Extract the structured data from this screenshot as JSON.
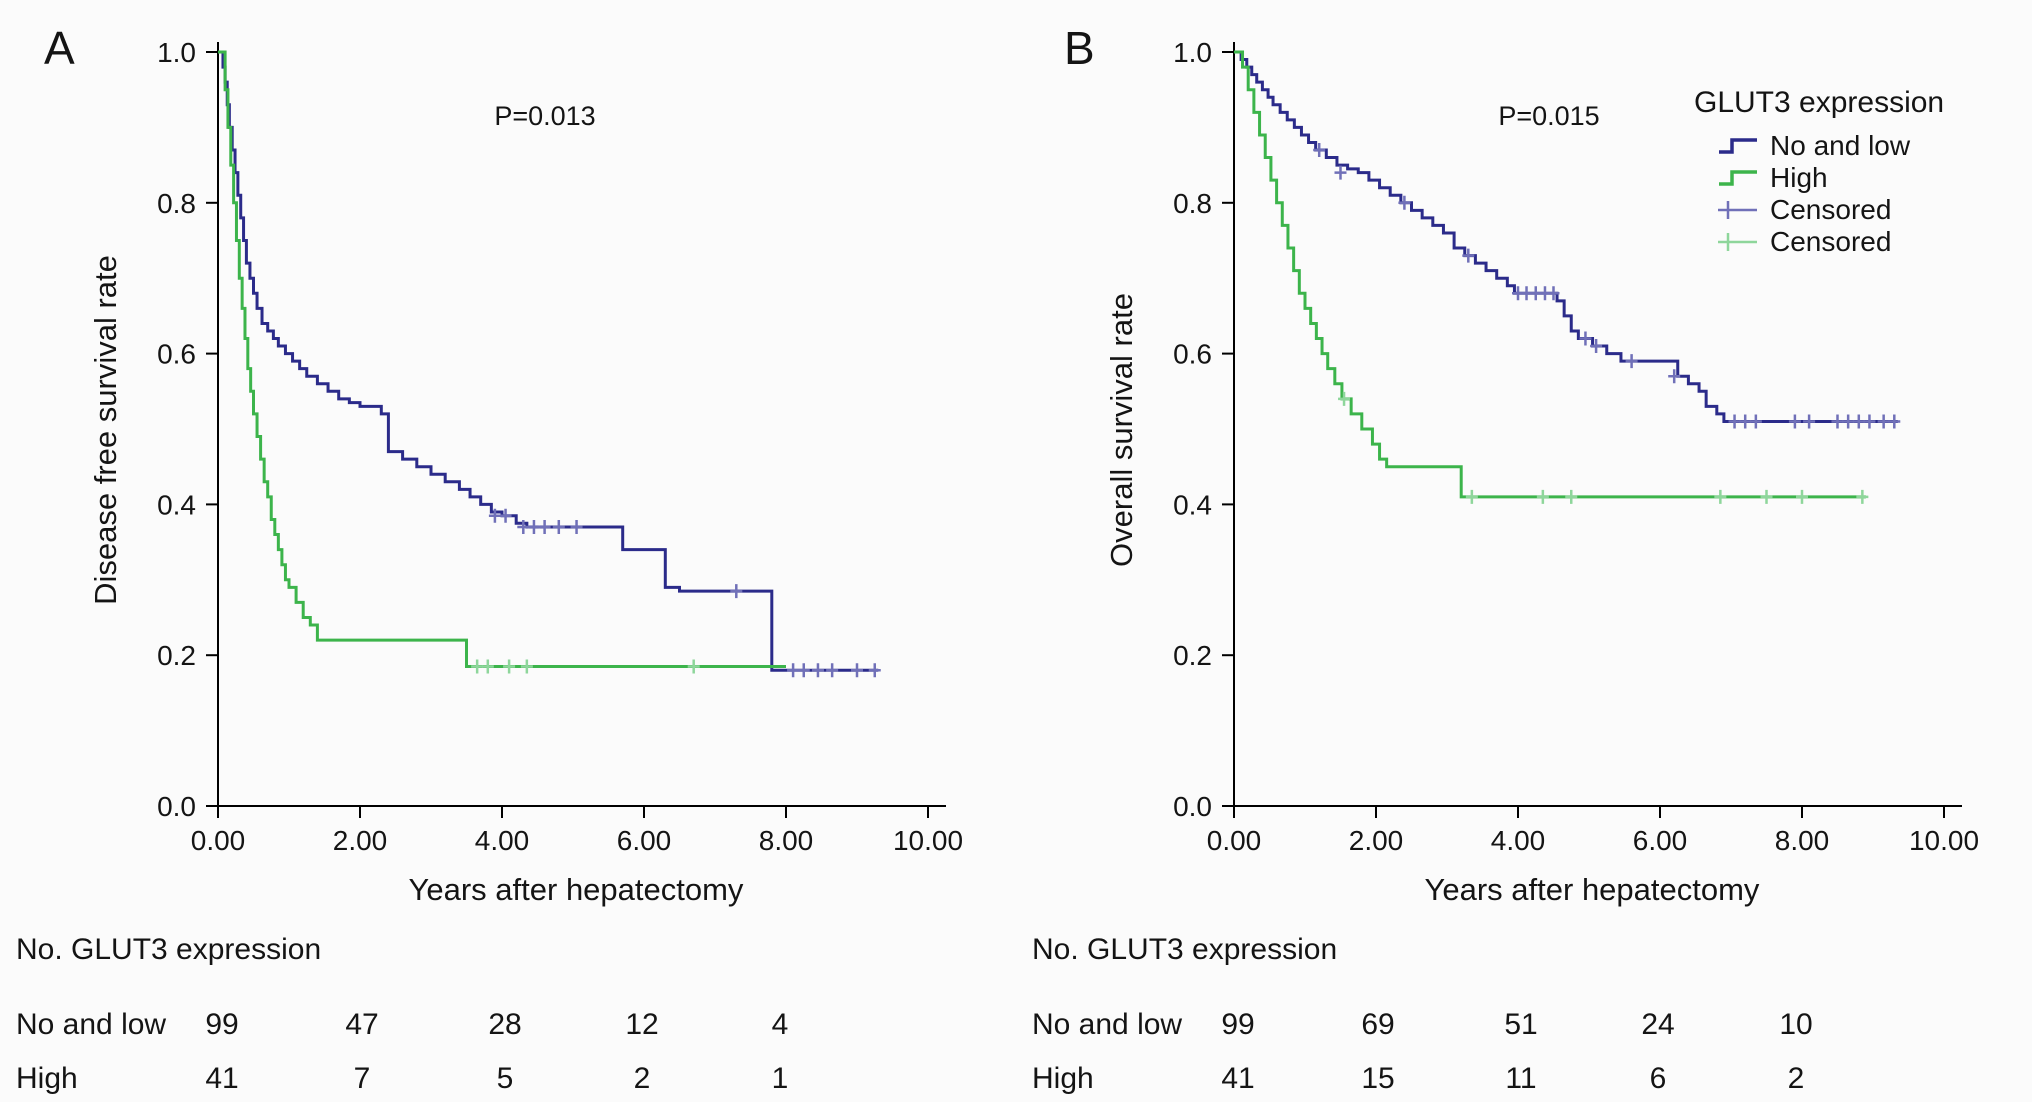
{
  "legend": {
    "title": "GLUT3 expression",
    "items": [
      {
        "label": "No and low",
        "color": "#2b2b8a",
        "glyph": "step"
      },
      {
        "label": "High",
        "color": "#3cb44b",
        "glyph": "step"
      },
      {
        "label": "Censored",
        "color": "#7070b8",
        "glyph": "plus"
      },
      {
        "label": "Censored",
        "color": "#8ed69b",
        "glyph": "plus"
      }
    ]
  },
  "chart_data": [
    {
      "type": "line",
      "panel": "A",
      "p_value": "P=0.013",
      "xlabel": "Years after hepatectomy",
      "ylabel": "Disease free survival rate",
      "xlim": [
        0,
        10
      ],
      "ylim": [
        0.0,
        1.0
      ],
      "grid": false,
      "x_ticks": [
        {
          "v": 0,
          "label": "0.00"
        },
        {
          "v": 2,
          "label": "2.00"
        },
        {
          "v": 4,
          "label": "4.00"
        },
        {
          "v": 6,
          "label": "6.00"
        },
        {
          "v": 8,
          "label": "8.00"
        },
        {
          "v": 10,
          "label": "10.00"
        }
      ],
      "y_ticks": [
        {
          "v": 0,
          "label": "0.0"
        },
        {
          "v": 0.2,
          "label": "0.2"
        },
        {
          "v": 0.4,
          "label": "0.4"
        },
        {
          "v": 0.6,
          "label": "0.6"
        },
        {
          "v": 0.8,
          "label": "0.8"
        },
        {
          "v": 1,
          "label": "1.0"
        }
      ],
      "series": [
        {
          "name": "No and low",
          "color": "#2b2b8a",
          "censor_color": "#7070b8",
          "end": 9.3,
          "steps": [
            [
              0,
              1.0
            ],
            [
              0.07,
              0.98
            ],
            [
              0.1,
              0.96
            ],
            [
              0.13,
              0.93
            ],
            [
              0.16,
              0.9
            ],
            [
              0.2,
              0.87
            ],
            [
              0.24,
              0.84
            ],
            [
              0.28,
              0.81
            ],
            [
              0.32,
              0.78
            ],
            [
              0.36,
              0.75
            ],
            [
              0.4,
              0.72
            ],
            [
              0.45,
              0.7
            ],
            [
              0.5,
              0.68
            ],
            [
              0.55,
              0.66
            ],
            [
              0.62,
              0.64
            ],
            [
              0.7,
              0.63
            ],
            [
              0.78,
              0.62
            ],
            [
              0.85,
              0.61
            ],
            [
              0.95,
              0.6
            ],
            [
              1.05,
              0.59
            ],
            [
              1.15,
              0.58
            ],
            [
              1.25,
              0.57
            ],
            [
              1.4,
              0.56
            ],
            [
              1.55,
              0.55
            ],
            [
              1.7,
              0.54
            ],
            [
              1.85,
              0.535
            ],
            [
              2.0,
              0.53
            ],
            [
              2.3,
              0.52
            ],
            [
              2.4,
              0.47
            ],
            [
              2.6,
              0.46
            ],
            [
              2.8,
              0.45
            ],
            [
              3.0,
              0.44
            ],
            [
              3.2,
              0.43
            ],
            [
              3.4,
              0.42
            ],
            [
              3.55,
              0.41
            ],
            [
              3.7,
              0.4
            ],
            [
              3.85,
              0.39
            ],
            [
              4.0,
              0.385
            ],
            [
              4.2,
              0.375
            ],
            [
              4.35,
              0.37
            ],
            [
              5.7,
              0.34
            ],
            [
              6.3,
              0.29
            ],
            [
              6.5,
              0.285
            ],
            [
              7.8,
              0.18
            ]
          ],
          "censored": [
            [
              3.9,
              0.385
            ],
            [
              4.05,
              0.385
            ],
            [
              4.3,
              0.37
            ],
            [
              4.45,
              0.37
            ],
            [
              4.6,
              0.37
            ],
            [
              4.8,
              0.37
            ],
            [
              5.05,
              0.37
            ],
            [
              7.3,
              0.285
            ],
            [
              8.1,
              0.18
            ],
            [
              8.25,
              0.18
            ],
            [
              8.45,
              0.18
            ],
            [
              8.65,
              0.18
            ],
            [
              9.0,
              0.18
            ],
            [
              9.25,
              0.18
            ]
          ]
        },
        {
          "name": "High",
          "color": "#3cb44b",
          "censor_color": "#8ed69b",
          "end": 8.0,
          "steps": [
            [
              0,
              1.0
            ],
            [
              0.1,
              0.95
            ],
            [
              0.14,
              0.9
            ],
            [
              0.18,
              0.85
            ],
            [
              0.22,
              0.8
            ],
            [
              0.26,
              0.75
            ],
            [
              0.3,
              0.7
            ],
            [
              0.34,
              0.66
            ],
            [
              0.38,
              0.62
            ],
            [
              0.42,
              0.58
            ],
            [
              0.46,
              0.55
            ],
            [
              0.5,
              0.52
            ],
            [
              0.55,
              0.49
            ],
            [
              0.6,
              0.46
            ],
            [
              0.65,
              0.43
            ],
            [
              0.7,
              0.41
            ],
            [
              0.75,
              0.38
            ],
            [
              0.8,
              0.36
            ],
            [
              0.85,
              0.34
            ],
            [
              0.9,
              0.32
            ],
            [
              0.95,
              0.3
            ],
            [
              1.0,
              0.29
            ],
            [
              1.1,
              0.27
            ],
            [
              1.2,
              0.25
            ],
            [
              1.3,
              0.24
            ],
            [
              1.4,
              0.22
            ],
            [
              3.5,
              0.185
            ]
          ],
          "censored": [
            [
              3.65,
              0.185
            ],
            [
              3.8,
              0.185
            ],
            [
              4.1,
              0.185
            ],
            [
              4.35,
              0.185
            ],
            [
              6.7,
              0.185
            ]
          ]
        }
      ],
      "at_risk": {
        "header": "No. GLUT3 expression",
        "rows": [
          {
            "label": "No and low",
            "values": [
              "99",
              "47",
              "28",
              "12",
              "4"
            ]
          },
          {
            "label": "High",
            "values": [
              "41",
              "7",
              "5",
              "2",
              "1"
            ]
          }
        ]
      }
    },
    {
      "type": "line",
      "panel": "B",
      "p_value": "P=0.015",
      "xlabel": "Years after hepatectomy",
      "ylabel": "Overall survival rate",
      "xlim": [
        0,
        10
      ],
      "ylim": [
        0.0,
        1.0
      ],
      "grid": false,
      "x_ticks": [
        {
          "v": 0,
          "label": "0.00"
        },
        {
          "v": 2,
          "label": "2.00"
        },
        {
          "v": 4,
          "label": "4.00"
        },
        {
          "v": 6,
          "label": "6.00"
        },
        {
          "v": 8,
          "label": "8.00"
        },
        {
          "v": 10,
          "label": "10.00"
        }
      ],
      "y_ticks": [
        {
          "v": 0,
          "label": "0.0"
        },
        {
          "v": 0.2,
          "label": "0.2"
        },
        {
          "v": 0.4,
          "label": "0.4"
        },
        {
          "v": 0.6,
          "label": "0.6"
        },
        {
          "v": 0.8,
          "label": "0.8"
        },
        {
          "v": 1,
          "label": "1.0"
        }
      ],
      "series": [
        {
          "name": "No and low",
          "color": "#2b2b8a",
          "censor_color": "#7070b8",
          "end": 9.35,
          "steps": [
            [
              0,
              1.0
            ],
            [
              0.1,
              0.99
            ],
            [
              0.18,
              0.98
            ],
            [
              0.25,
              0.97
            ],
            [
              0.32,
              0.96
            ],
            [
              0.4,
              0.95
            ],
            [
              0.48,
              0.94
            ],
            [
              0.55,
              0.93
            ],
            [
              0.65,
              0.92
            ],
            [
              0.75,
              0.91
            ],
            [
              0.85,
              0.9
            ],
            [
              0.95,
              0.89
            ],
            [
              1.05,
              0.88
            ],
            [
              1.15,
              0.87
            ],
            [
              1.3,
              0.86
            ],
            [
              1.45,
              0.85
            ],
            [
              1.6,
              0.845
            ],
            [
              1.75,
              0.84
            ],
            [
              1.9,
              0.83
            ],
            [
              2.05,
              0.82
            ],
            [
              2.2,
              0.81
            ],
            [
              2.35,
              0.8
            ],
            [
              2.5,
              0.79
            ],
            [
              2.65,
              0.78
            ],
            [
              2.8,
              0.77
            ],
            [
              2.95,
              0.76
            ],
            [
              3.1,
              0.74
            ],
            [
              3.25,
              0.73
            ],
            [
              3.4,
              0.72
            ],
            [
              3.55,
              0.71
            ],
            [
              3.7,
              0.7
            ],
            [
              3.85,
              0.69
            ],
            [
              3.95,
              0.68
            ],
            [
              4.55,
              0.67
            ],
            [
              4.65,
              0.65
            ],
            [
              4.75,
              0.63
            ],
            [
              4.85,
              0.62
            ],
            [
              5.05,
              0.61
            ],
            [
              5.25,
              0.6
            ],
            [
              5.45,
              0.59
            ],
            [
              6.25,
              0.57
            ],
            [
              6.4,
              0.56
            ],
            [
              6.55,
              0.55
            ],
            [
              6.65,
              0.53
            ],
            [
              6.8,
              0.52
            ],
            [
              6.9,
              0.51
            ]
          ],
          "censored": [
            [
              1.2,
              0.87
            ],
            [
              1.5,
              0.84
            ],
            [
              2.4,
              0.8
            ],
            [
              3.3,
              0.73
            ],
            [
              4.0,
              0.68
            ],
            [
              4.12,
              0.68
            ],
            [
              4.25,
              0.68
            ],
            [
              4.38,
              0.68
            ],
            [
              4.5,
              0.68
            ],
            [
              4.95,
              0.62
            ],
            [
              5.1,
              0.61
            ],
            [
              5.6,
              0.59
            ],
            [
              6.2,
              0.57
            ],
            [
              7.05,
              0.51
            ],
            [
              7.2,
              0.51
            ],
            [
              7.35,
              0.51
            ],
            [
              7.9,
              0.51
            ],
            [
              8.1,
              0.51
            ],
            [
              8.5,
              0.51
            ],
            [
              8.65,
              0.51
            ],
            [
              8.8,
              0.51
            ],
            [
              8.95,
              0.51
            ],
            [
              9.15,
              0.51
            ],
            [
              9.3,
              0.51
            ]
          ]
        },
        {
          "name": "High",
          "color": "#3cb44b",
          "censor_color": "#8ed69b",
          "end": 8.9,
          "steps": [
            [
              0,
              1.0
            ],
            [
              0.12,
              0.98
            ],
            [
              0.2,
              0.95
            ],
            [
              0.28,
              0.92
            ],
            [
              0.36,
              0.89
            ],
            [
              0.44,
              0.86
            ],
            [
              0.52,
              0.83
            ],
            [
              0.6,
              0.8
            ],
            [
              0.68,
              0.77
            ],
            [
              0.76,
              0.74
            ],
            [
              0.84,
              0.71
            ],
            [
              0.92,
              0.68
            ],
            [
              1.0,
              0.66
            ],
            [
              1.08,
              0.64
            ],
            [
              1.16,
              0.62
            ],
            [
              1.24,
              0.6
            ],
            [
              1.32,
              0.58
            ],
            [
              1.42,
              0.56
            ],
            [
              1.52,
              0.54
            ],
            [
              1.65,
              0.52
            ],
            [
              1.8,
              0.5
            ],
            [
              1.95,
              0.48
            ],
            [
              2.05,
              0.46
            ],
            [
              2.15,
              0.45
            ],
            [
              3.2,
              0.41
            ]
          ],
          "censored": [
            [
              1.55,
              0.54
            ],
            [
              3.35,
              0.41
            ],
            [
              4.35,
              0.41
            ],
            [
              4.75,
              0.41
            ],
            [
              6.85,
              0.41
            ],
            [
              7.5,
              0.41
            ],
            [
              8.0,
              0.41
            ],
            [
              8.85,
              0.41
            ]
          ]
        }
      ],
      "at_risk": {
        "header": "No. GLUT3 expression",
        "rows": [
          {
            "label": "No and low",
            "values": [
              "99",
              "69",
              "51",
              "24",
              "10"
            ]
          },
          {
            "label": "High",
            "values": [
              "41",
              "15",
              "11",
              "6",
              "2"
            ]
          }
        ]
      }
    }
  ]
}
